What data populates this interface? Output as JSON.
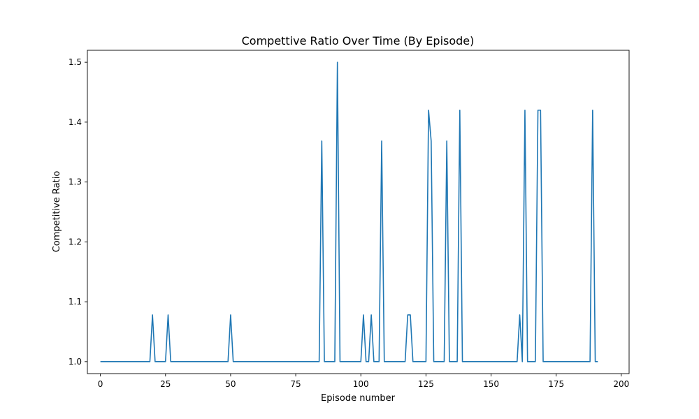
{
  "chart_data": {
    "type": "line",
    "title": "Compettive Ratio Over Time (By Episode)",
    "xlabel": "Episode number",
    "ylabel": "Competitive Ratio",
    "xlim": [
      -5,
      203
    ],
    "ylim": [
      0.98,
      1.52
    ],
    "xticks": [
      0,
      25,
      50,
      75,
      100,
      125,
      150,
      175,
      200
    ],
    "yticks": [
      1.0,
      1.1,
      1.2,
      1.3,
      1.4,
      1.5
    ],
    "ytick_labels": [
      "1.0",
      "1.1",
      "1.2",
      "1.3",
      "1.4",
      "1.5"
    ],
    "grid": false,
    "legend": "none",
    "colors": {
      "series": "#1f77b4",
      "axes": "#000000",
      "background": "#ffffff"
    },
    "series": [
      {
        "values": [
          1,
          1,
          1,
          1,
          1,
          1,
          1,
          1,
          1,
          1,
          1,
          1,
          1,
          1,
          1,
          1,
          1,
          1,
          1,
          1,
          1.0781,
          1,
          1,
          1,
          1,
          1,
          1.0781,
          1,
          1,
          1,
          1,
          1,
          1,
          1,
          1,
          1,
          1,
          1,
          1,
          1,
          1,
          1,
          1,
          1,
          1,
          1,
          1,
          1,
          1,
          1,
          1.0781,
          1,
          1,
          1,
          1,
          1,
          1,
          1,
          1,
          1,
          1,
          1,
          1,
          1,
          1,
          1,
          1,
          1,
          1,
          1,
          1,
          1,
          1,
          1,
          1,
          1,
          1,
          1,
          1,
          1,
          1,
          1,
          1,
          1,
          1,
          1.3684,
          1,
          1,
          1,
          1,
          1,
          1.5,
          1,
          1,
          1,
          1,
          1,
          1,
          1,
          1,
          1,
          1.0781,
          1,
          1,
          1.0781,
          1,
          1,
          1,
          1.3684,
          1,
          1,
          1,
          1,
          1,
          1,
          1,
          1,
          1,
          1.0781,
          1.0781,
          1,
          1,
          1,
          1,
          1,
          1,
          1.42,
          1.3684,
          1,
          1,
          1,
          1,
          1,
          1.3684,
          1,
          1,
          1,
          1,
          1.42,
          1,
          1,
          1,
          1,
          1,
          1,
          1,
          1,
          1,
          1,
          1,
          1,
          1,
          1,
          1,
          1,
          1,
          1,
          1,
          1,
          1,
          1,
          1.0781,
          1,
          1.42,
          1,
          1,
          1,
          1,
          1.42,
          1.42,
          1,
          1,
          1,
          1,
          1,
          1,
          1,
          1,
          1,
          1,
          1,
          1,
          1,
          1,
          1,
          1,
          1,
          1,
          1,
          1.42,
          1,
          1
        ]
      }
    ]
  }
}
